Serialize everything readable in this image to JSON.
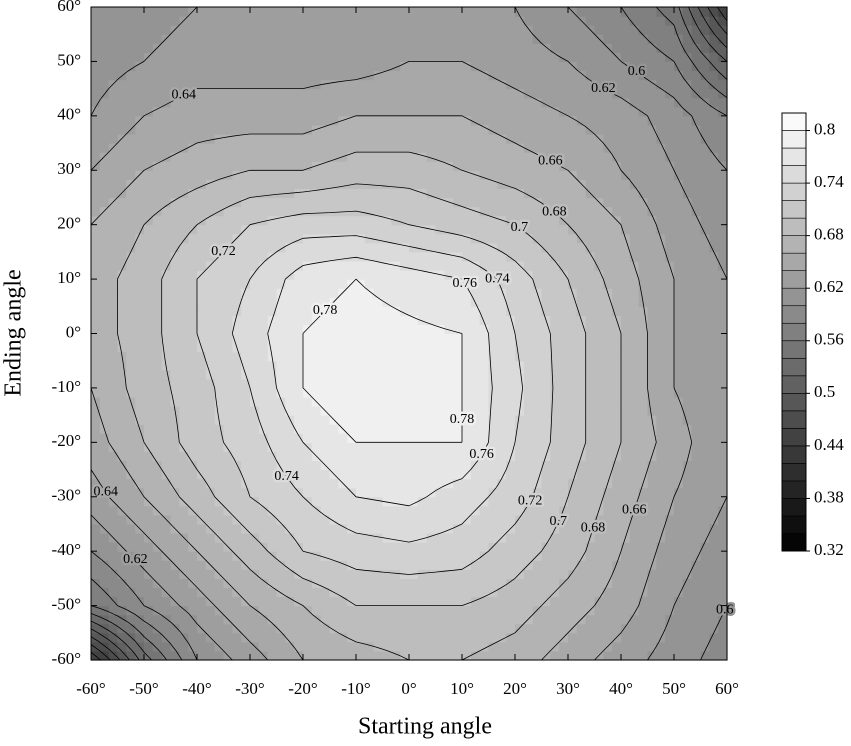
{
  "chart_data": {
    "type": "contour",
    "xlabel": "Starting angle",
    "ylabel": "Ending angle",
    "xlim": [
      -60,
      60
    ],
    "ylim": [
      -60,
      60
    ],
    "xticks": [
      {
        "value": -60,
        "label": "-60°"
      },
      {
        "value": -50,
        "label": "-50°"
      },
      {
        "value": -40,
        "label": "-40°"
      },
      {
        "value": -30,
        "label": "-30°"
      },
      {
        "value": -20,
        "label": "-20°"
      },
      {
        "value": -10,
        "label": "-10°"
      },
      {
        "value": 0,
        "label": "0°"
      },
      {
        "value": 10,
        "label": "10°"
      },
      {
        "value": 20,
        "label": "20°"
      },
      {
        "value": 30,
        "label": "30°"
      },
      {
        "value": 40,
        "label": "40°"
      },
      {
        "value": 50,
        "label": "50°"
      },
      {
        "value": 60,
        "label": "60°"
      }
    ],
    "yticks": [
      {
        "value": -60,
        "label": "-60°"
      },
      {
        "value": -50,
        "label": "-50°"
      },
      {
        "value": -40,
        "label": "-40°"
      },
      {
        "value": -30,
        "label": "-30°"
      },
      {
        "value": -20,
        "label": "-20°"
      },
      {
        "value": -10,
        "label": "-10°"
      },
      {
        "value": 0,
        "label": "0°"
      },
      {
        "value": 10,
        "label": "10°"
      },
      {
        "value": 20,
        "label": "20°"
      },
      {
        "value": 30,
        "label": "30°"
      },
      {
        "value": 40,
        "label": "40°"
      },
      {
        "value": 50,
        "label": "50°"
      },
      {
        "value": 60,
        "label": "60°"
      }
    ],
    "x": [
      -60,
      -50,
      -40,
      -30,
      -20,
      -10,
      0,
      10,
      20,
      30,
      40,
      50,
      60
    ],
    "y": [
      -60,
      -50,
      -40,
      -30,
      -20,
      -10,
      0,
      10,
      20,
      30,
      40,
      50,
      60
    ],
    "z": [
      [
        0.42,
        0.53,
        0.6,
        0.63,
        0.66,
        0.67,
        0.68,
        0.68,
        0.67,
        0.65,
        0.63,
        0.61,
        0.59
      ],
      [
        0.56,
        0.6,
        0.63,
        0.66,
        0.68,
        0.7,
        0.7,
        0.7,
        0.69,
        0.67,
        0.65,
        0.62,
        0.6
      ],
      [
        0.6,
        0.63,
        0.66,
        0.69,
        0.72,
        0.73,
        0.735,
        0.73,
        0.71,
        0.69,
        0.66,
        0.63,
        0.61
      ],
      [
        0.63,
        0.66,
        0.69,
        0.72,
        0.74,
        0.76,
        0.765,
        0.75,
        0.73,
        0.7,
        0.67,
        0.64,
        0.62
      ],
      [
        0.65,
        0.68,
        0.71,
        0.73,
        0.76,
        0.78,
        0.78,
        0.78,
        0.74,
        0.71,
        0.68,
        0.65,
        0.62
      ],
      [
        0.66,
        0.69,
        0.71,
        0.74,
        0.78,
        0.8,
        0.79,
        0.78,
        0.745,
        0.71,
        0.68,
        0.64,
        0.62
      ],
      [
        0.67,
        0.69,
        0.72,
        0.75,
        0.78,
        0.79,
        0.785,
        0.78,
        0.74,
        0.71,
        0.68,
        0.64,
        0.62
      ],
      [
        0.67,
        0.69,
        0.72,
        0.74,
        0.77,
        0.78,
        0.77,
        0.76,
        0.73,
        0.7,
        0.67,
        0.64,
        0.62
      ],
      [
        0.66,
        0.68,
        0.7,
        0.72,
        0.73,
        0.73,
        0.72,
        0.71,
        0.7,
        0.68,
        0.66,
        0.63,
        0.61
      ],
      [
        0.64,
        0.66,
        0.67,
        0.68,
        0.68,
        0.69,
        0.69,
        0.68,
        0.67,
        0.66,
        0.64,
        0.62,
        0.6
      ],
      [
        0.62,
        0.64,
        0.65,
        0.65,
        0.65,
        0.66,
        0.66,
        0.66,
        0.65,
        0.64,
        0.63,
        0.61,
        0.58
      ],
      [
        0.61,
        0.62,
        0.63,
        0.63,
        0.63,
        0.63,
        0.64,
        0.64,
        0.63,
        0.62,
        0.6,
        0.58,
        0.52
      ],
      [
        0.6,
        0.61,
        0.62,
        0.62,
        0.62,
        0.62,
        0.63,
        0.62,
        0.62,
        0.6,
        0.58,
        0.55,
        0.44
      ]
    ],
    "levels": [
      0.32,
      0.34,
      0.36,
      0.38,
      0.4,
      0.42,
      0.44,
      0.46,
      0.48,
      0.5,
      0.52,
      0.54,
      0.56,
      0.58,
      0.6,
      0.62,
      0.64,
      0.66,
      0.68,
      0.7,
      0.72,
      0.74,
      0.76,
      0.78,
      0.8
    ],
    "clim": [
      0.32,
      0.82
    ],
    "cbar_ticks": [
      0.32,
      0.38,
      0.44,
      0.5,
      0.56,
      0.62,
      0.68,
      0.74,
      0.8
    ]
  }
}
